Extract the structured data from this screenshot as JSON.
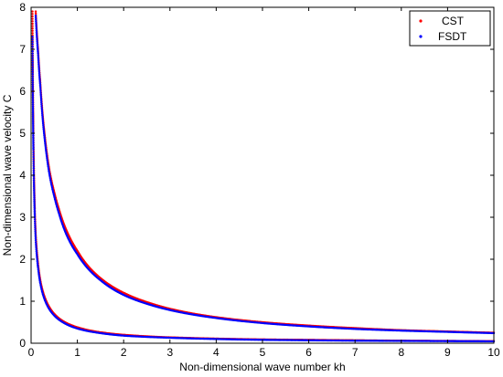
{
  "chart_data": {
    "type": "scatter",
    "xlabel": "Non-dimensional wave number kh",
    "ylabel": "Non-dimensional wave velocity C",
    "xlim": [
      0,
      10
    ],
    "ylim": [
      0,
      8
    ],
    "xticks": [
      0,
      1,
      2,
      3,
      4,
      5,
      6,
      7,
      8,
      9,
      10
    ],
    "yticks": [
      0,
      1,
      2,
      3,
      4,
      5,
      6,
      7,
      8
    ],
    "legend": "top-right",
    "grid": false,
    "series": [
      {
        "name": "CST",
        "color": "#ff0000",
        "branches": [
          {
            "x": [
              0.1,
              0.15,
              0.2,
              0.3,
              0.4,
              0.5,
              0.6,
              0.8,
              1.0,
              1.5,
              2.0,
              2.5,
              3,
              4,
              5,
              6,
              7,
              8,
              9,
              10
            ],
            "y": [
              7.9,
              7.0,
              6.2,
              4.9,
              4.1,
              3.6,
              3.2,
              2.6,
              2.2,
              1.55,
              1.2,
              0.98,
              0.82,
              0.62,
              0.5,
              0.42,
              0.36,
              0.31,
              0.28,
              0.25
            ]
          },
          {
            "x": [
              0.03,
              0.05,
              0.08,
              0.1,
              0.15,
              0.2,
              0.3,
              0.4,
              0.5,
              0.7,
              1.0,
              1.5,
              2,
              3,
              4,
              5,
              6,
              7,
              8,
              9,
              10
            ],
            "y": [
              7.9,
              5.0,
              3.2,
              2.6,
              1.9,
              1.5,
              1.08,
              0.85,
              0.7,
              0.52,
              0.38,
              0.26,
              0.2,
              0.14,
              0.11,
              0.09,
              0.08,
              0.07,
              0.06,
              0.055,
              0.05
            ]
          }
        ]
      },
      {
        "name": "FSDT",
        "color": "#0000ff",
        "branches": [
          {
            "x": [
              0.1,
              0.15,
              0.2,
              0.3,
              0.4,
              0.5,
              0.6,
              0.8,
              1.0,
              1.5,
              2.0,
              2.5,
              3,
              4,
              5,
              6,
              7,
              8,
              9,
              10
            ],
            "y": [
              7.8,
              6.9,
              6.1,
              4.8,
              4.0,
              3.5,
              3.1,
              2.5,
              2.12,
              1.5,
              1.15,
              0.94,
              0.79,
              0.6,
              0.48,
              0.4,
              0.34,
              0.3,
              0.27,
              0.24
            ]
          },
          {
            "x": [
              0.03,
              0.05,
              0.08,
              0.1,
              0.15,
              0.2,
              0.3,
              0.4,
              0.5,
              0.7,
              1.0,
              1.5,
              2,
              3,
              4,
              5,
              6,
              7,
              8,
              9,
              10
            ],
            "y": [
              7.3,
              4.6,
              3.0,
              2.45,
              1.8,
              1.42,
              1.02,
              0.8,
              0.66,
              0.49,
              0.35,
              0.24,
              0.18,
              0.13,
              0.1,
              0.08,
              0.07,
              0.06,
              0.055,
              0.05,
              0.045
            ]
          }
        ]
      }
    ]
  }
}
